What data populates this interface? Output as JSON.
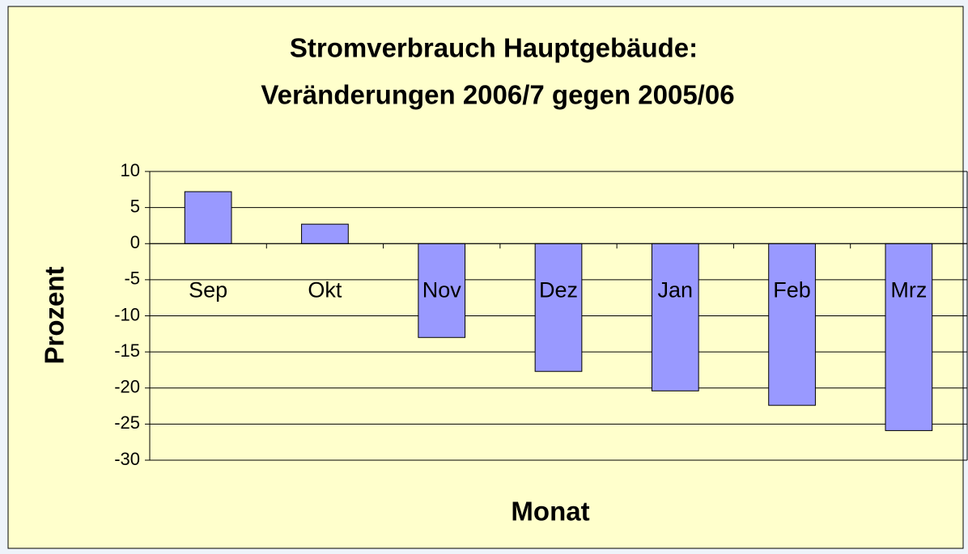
{
  "chart_data": {
    "type": "bar",
    "title": [
      "Stromverbrauch Hauptgebäude:",
      "Veränderungen 2006/7 gegen 2005/06"
    ],
    "x_label": "Monat",
    "y_label": "Prozent",
    "categories": [
      "Sep",
      "Okt",
      "Nov",
      "Dez",
      "Jan",
      "Feb",
      "Mrz"
    ],
    "values": [
      7.2,
      2.7,
      -13.0,
      -17.7,
      -20.4,
      -22.4,
      -25.9
    ],
    "color": "#9999ff",
    "ylim": [
      -30,
      10
    ],
    "yticks": [
      -30,
      -25,
      -20,
      -15,
      -10,
      -5,
      0,
      5,
      10
    ],
    "grid": true
  }
}
